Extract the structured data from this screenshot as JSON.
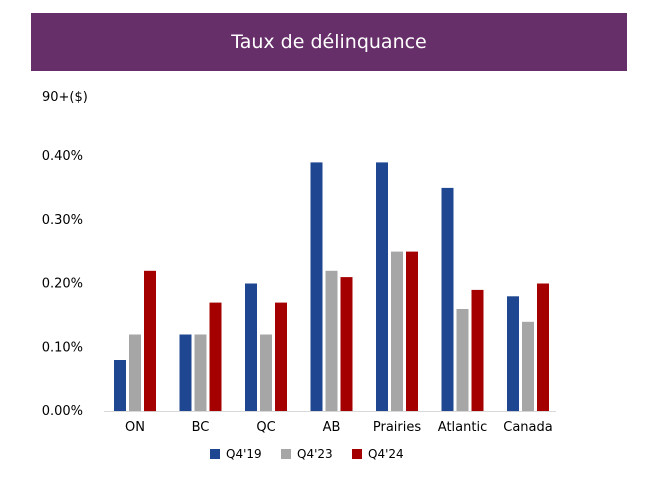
{
  "header": {
    "title": "Taux de délinquance"
  },
  "chart_data": {
    "type": "bar",
    "title": "Taux de délinquance",
    "subtitle": "90+($)",
    "xlabel": "",
    "ylabel": "",
    "categories": [
      "ON",
      "BC",
      "QC",
      "AB",
      "Prairies",
      "Atlantic",
      "Canada"
    ],
    "series": [
      {
        "name": "Q4'19",
        "color": "#1f4690",
        "values": [
          0.08,
          0.12,
          0.2,
          0.39,
          0.39,
          0.35,
          0.18
        ]
      },
      {
        "name": "Q4'23",
        "color": "#a6a6a6",
        "values": [
          0.12,
          0.12,
          0.12,
          0.22,
          0.25,
          0.16,
          0.14
        ]
      },
      {
        "name": "Q4'24",
        "color": "#a50000",
        "values": [
          0.22,
          0.17,
          0.17,
          0.21,
          0.25,
          0.19,
          0.2
        ]
      }
    ],
    "ylim": [
      0,
      0.4
    ],
    "yticks": [
      "0.00%",
      "0.10%",
      "0.20%",
      "0.30%",
      "0.40%"
    ],
    "grid": false,
    "legend_position": "bottom"
  }
}
